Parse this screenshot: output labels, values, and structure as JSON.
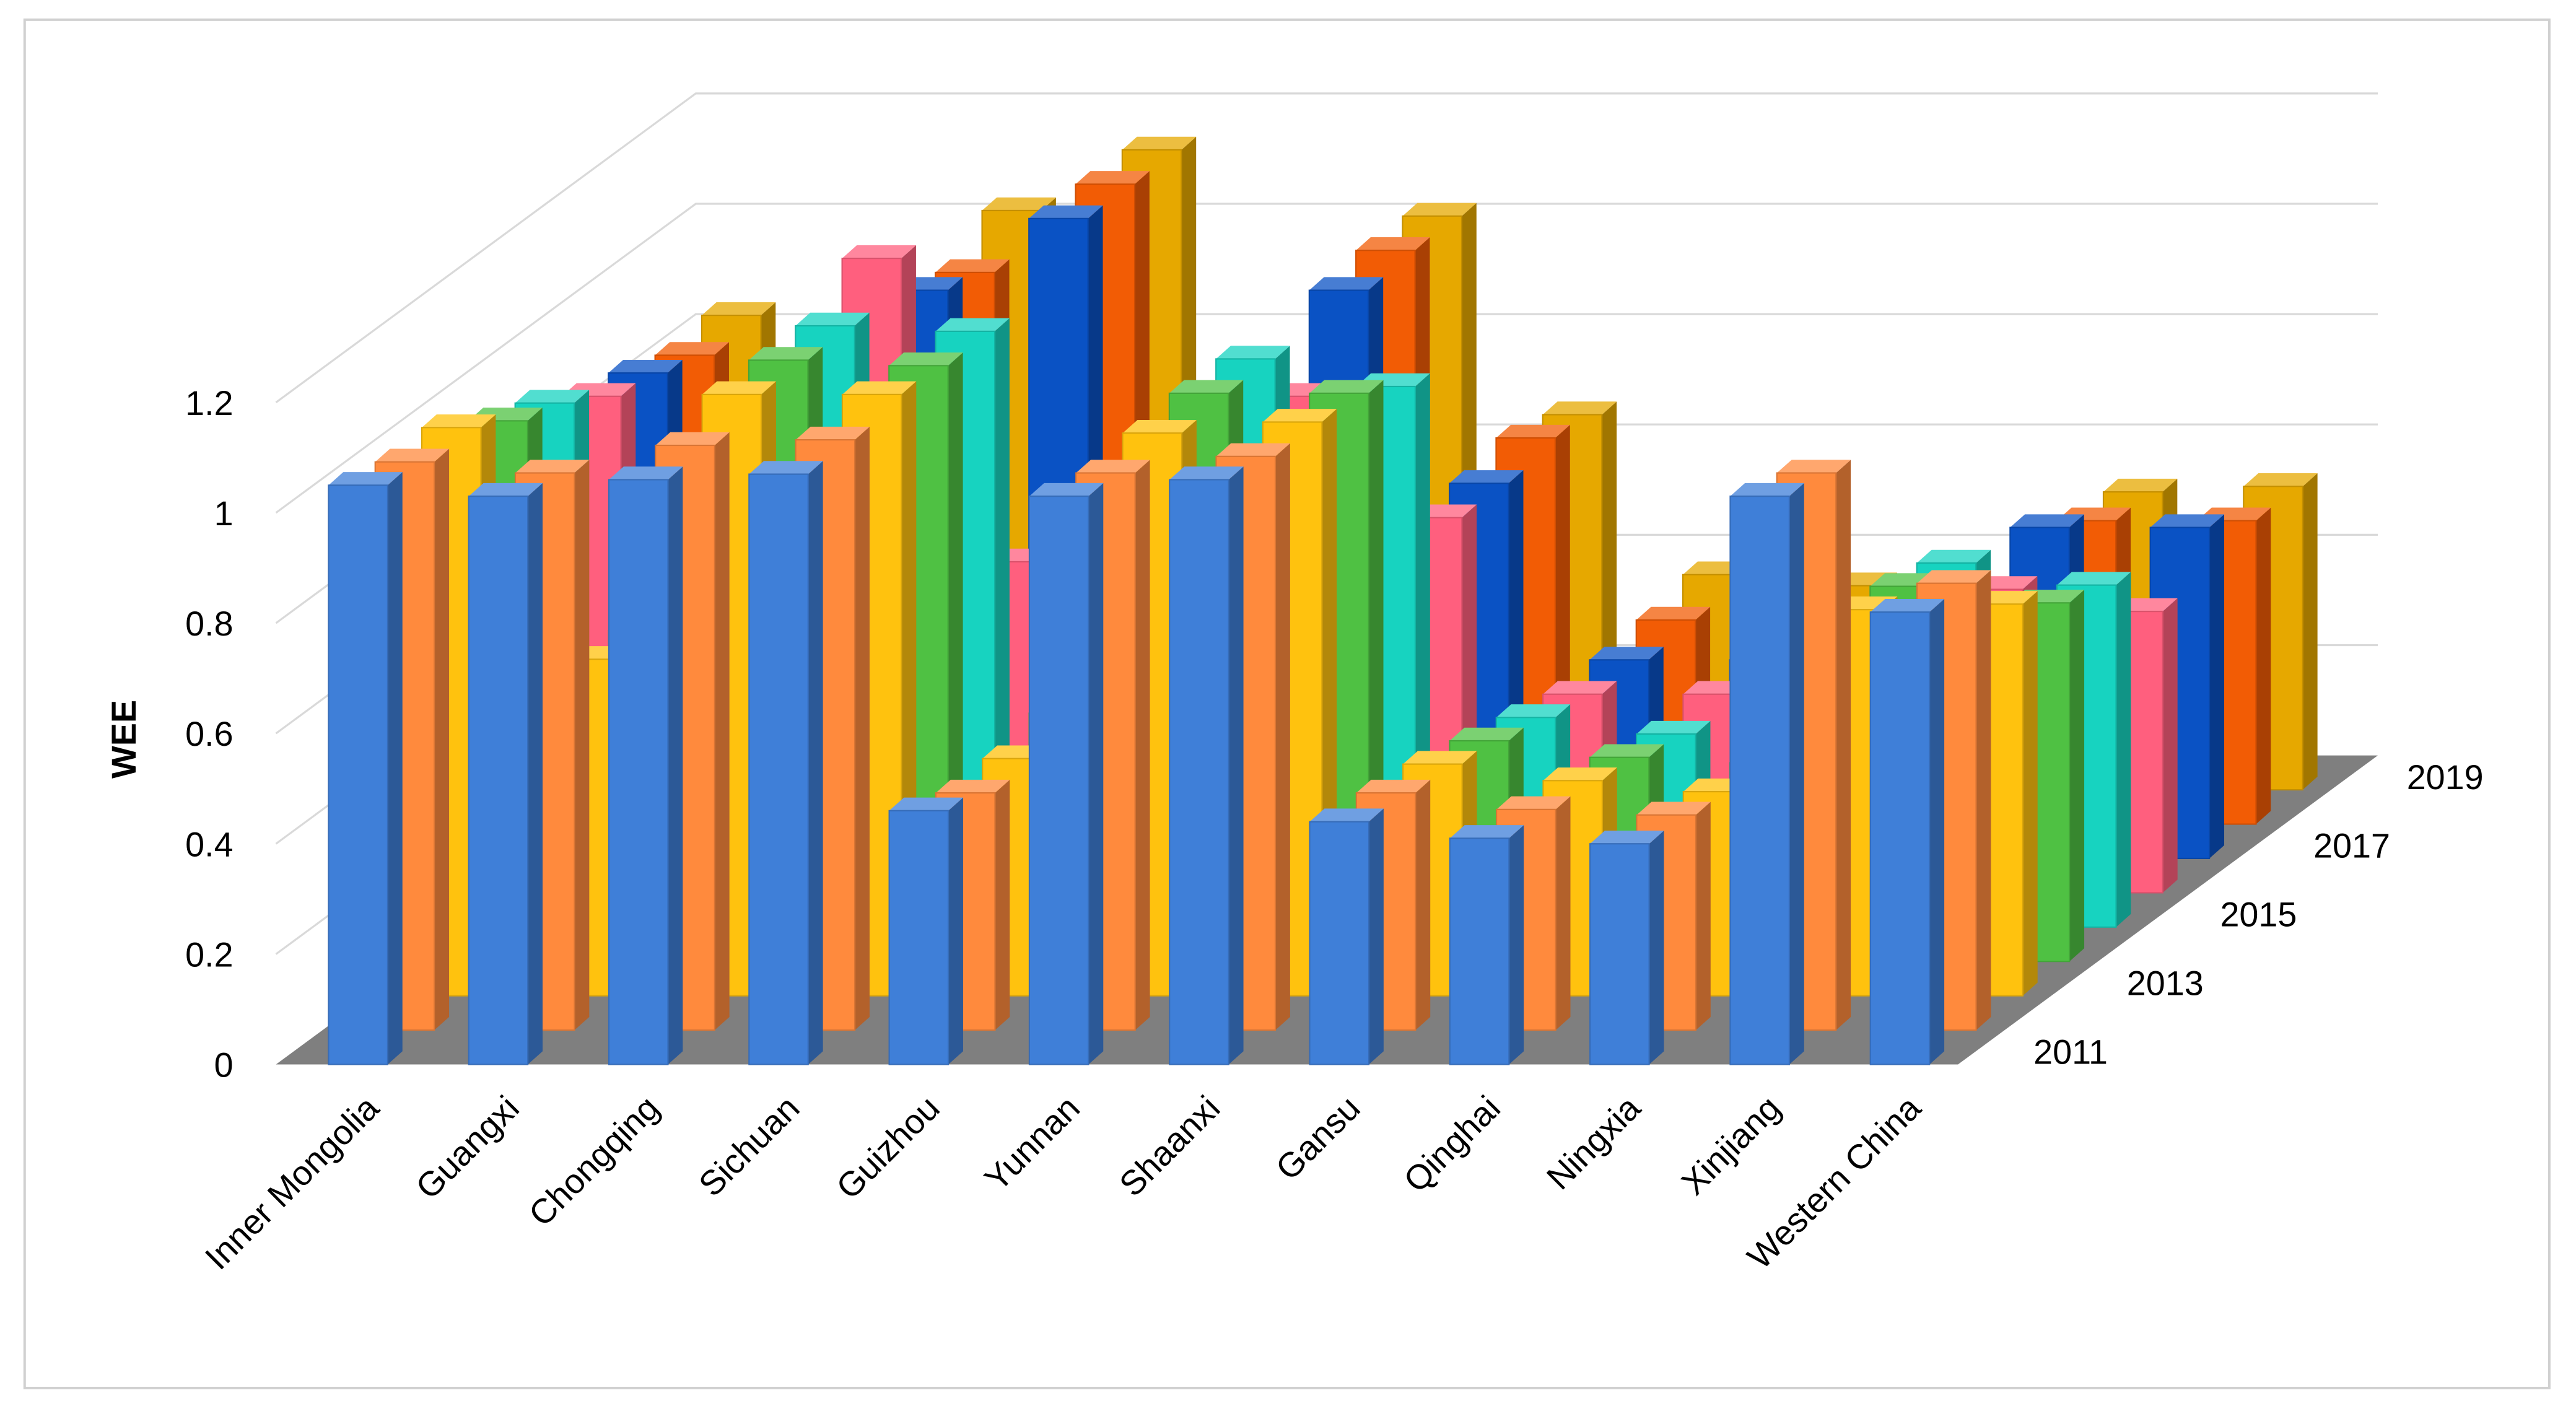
{
  "chart_data": {
    "type": "bar3d",
    "y_label": "WEE",
    "categories": [
      "Inner Mongolia",
      "Guangxi",
      "Chongqing",
      "Sichuan",
      "Guizhou",
      "Yunnan",
      "Shaanxi",
      "Gansu",
      "Qinghai",
      "Ningxia",
      "Xinjiang",
      "Western China"
    ],
    "series": [
      {
        "name": "2011",
        "color": "#3f7fd8",
        "values": [
          1.05,
          1.03,
          1.06,
          1.07,
          0.46,
          1.03,
          1.06,
          0.44,
          0.41,
          0.4,
          1.03,
          0.82
        ]
      },
      {
        "name": null,
        "color": "#ff8a3d",
        "values": [
          1.03,
          1.01,
          1.06,
          1.07,
          0.43,
          1.01,
          1.04,
          0.43,
          0.4,
          0.39,
          1.01,
          0.81
        ]
      },
      {
        "name": "2013",
        "color": "#ffc20e",
        "values": [
          1.03,
          0.61,
          1.09,
          1.09,
          0.43,
          1.02,
          1.04,
          0.42,
          0.39,
          0.37,
          0.7,
          0.71
        ]
      },
      {
        "name": null,
        "color": "#4fc143",
        "values": [
          0.98,
          0.6,
          1.09,
          1.08,
          0.45,
          1.03,
          1.03,
          0.4,
          0.37,
          0.36,
          0.68,
          0.65
        ]
      },
      {
        "name": "2015",
        "color": "#17d3c0",
        "values": [
          0.95,
          0.62,
          1.09,
          1.08,
          0.47,
          1.03,
          0.98,
          0.38,
          0.35,
          0.34,
          0.66,
          0.62
        ]
      },
      {
        "name": null,
        "color": "#ff5f7e",
        "values": [
          0.9,
          0.6,
          1.15,
          0.6,
          0.48,
          0.9,
          0.68,
          0.36,
          0.36,
          0.35,
          0.55,
          0.51
        ]
      },
      {
        "name": "2017",
        "color": "#0a52c4",
        "values": [
          0.88,
          0.62,
          1.03,
          1.16,
          0.5,
          1.03,
          0.68,
          0.36,
          0.36,
          0.34,
          0.6,
          0.6
        ]
      },
      {
        "name": null,
        "color": "#f25c05",
        "values": [
          0.85,
          0.6,
          1.0,
          1.16,
          0.52,
          1.04,
          0.7,
          0.37,
          0.35,
          0.35,
          0.55,
          0.55
        ]
      },
      {
        "name": "2019",
        "color": "#e6a800",
        "values": [
          0.86,
          0.62,
          1.05,
          1.16,
          0.54,
          1.04,
          0.68,
          0.39,
          0.37,
          0.36,
          0.54,
          0.55
        ]
      }
    ],
    "ylim": [
      0,
      1.2
    ],
    "yticks": [
      0,
      0.2,
      0.4,
      0.6,
      0.8,
      1,
      1.2
    ],
    "grid": true
  }
}
